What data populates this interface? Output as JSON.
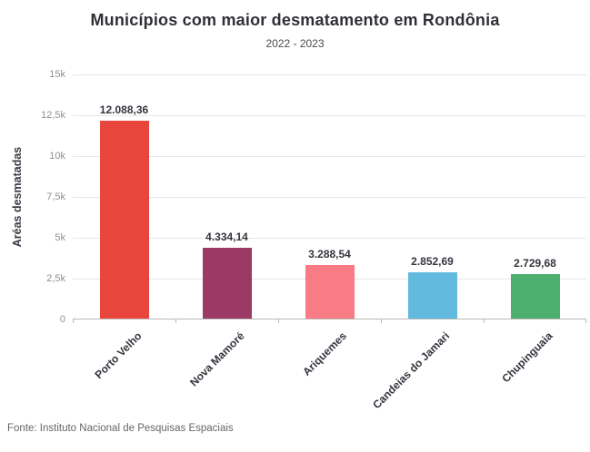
{
  "chart_data": {
    "type": "bar",
    "title": "Municípios com maior desmatamento em Rondônia",
    "subtitle": "2022 - 2023",
    "xlabel": "",
    "ylabel": "Aréas desmatadas",
    "categories": [
      "Porto Velho",
      "Nova Mamoré",
      "Ariquemes",
      "Candeias do Jamari",
      "Chupinguaia"
    ],
    "values": [
      12088.36,
      4334.14,
      3288.54,
      2852.69,
      2729.68
    ],
    "value_labels": [
      "12.088,36",
      "4.334,14",
      "3.288,54",
      "2.852,69",
      "2.729,68"
    ],
    "bar_colors": [
      "#e8453c",
      "#9c3a66",
      "#f97b84",
      "#62bade",
      "#4caf6e"
    ],
    "ylim": [
      0,
      15000
    ],
    "yticks": [
      {
        "value": 0,
        "label": "0"
      },
      {
        "value": 2500,
        "label": "2,5k"
      },
      {
        "value": 5000,
        "label": "5k"
      },
      {
        "value": 7500,
        "label": "7,5k"
      },
      {
        "value": 10000,
        "label": "10k"
      },
      {
        "value": 12500,
        "label": "12,5k"
      },
      {
        "value": 15000,
        "label": "15k"
      }
    ],
    "grid": true,
    "legend": "none"
  },
  "footer": {
    "source": "Fonte: Instituto Nacional de Pesquisas Espaciais"
  },
  "colors": {
    "background": "#ffffff",
    "gridline": "#e6e6e6",
    "axis_line": "#b8b8b8",
    "tick_label": "#8f8f8f",
    "title": "#2f2f38",
    "subtitle": "#4a4a4a",
    "value_label": "#34343e",
    "category_label": "#34343e",
    "source": "#666666"
  }
}
